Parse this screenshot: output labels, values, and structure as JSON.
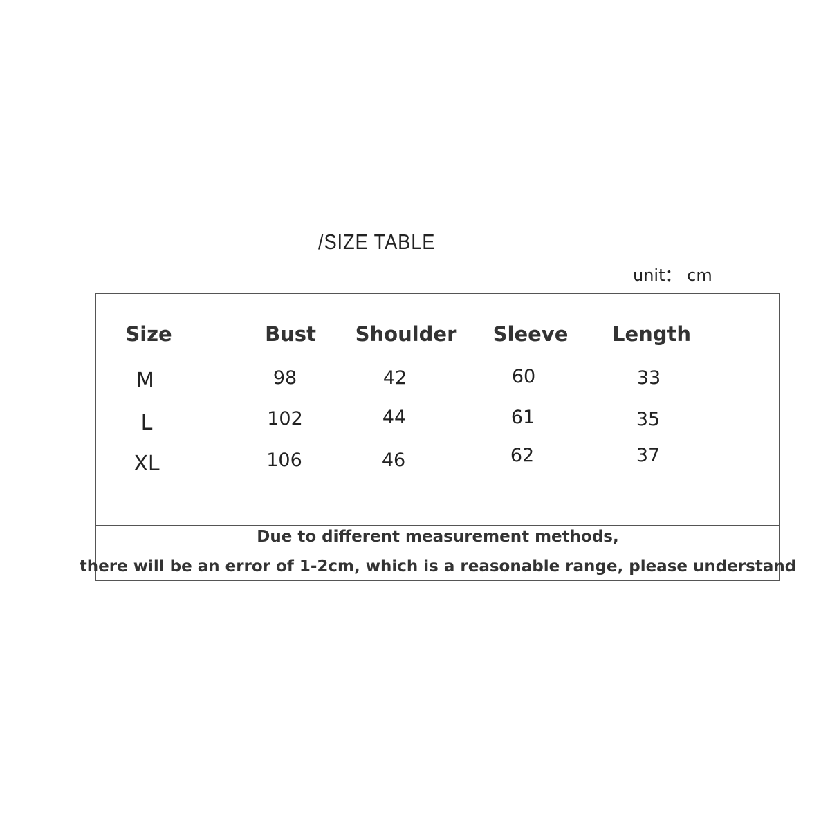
{
  "title": "/SIZE TABLE",
  "unit": "unit： cm",
  "table": {
    "headers": [
      "Size",
      "Bust",
      "Shoulder",
      "Sleeve",
      "Length"
    ],
    "rows": [
      [
        "M",
        "98",
        "42",
        "60",
        "33"
      ],
      [
        "L",
        "102",
        "44",
        "61",
        "35"
      ],
      [
        "XL",
        "106",
        "46",
        "62",
        "37"
      ]
    ]
  },
  "note": {
    "line1": "Due to different measurement methods,",
    "line2": "there will be an error of 1-2cm, which is a reasonable range, please understand"
  }
}
